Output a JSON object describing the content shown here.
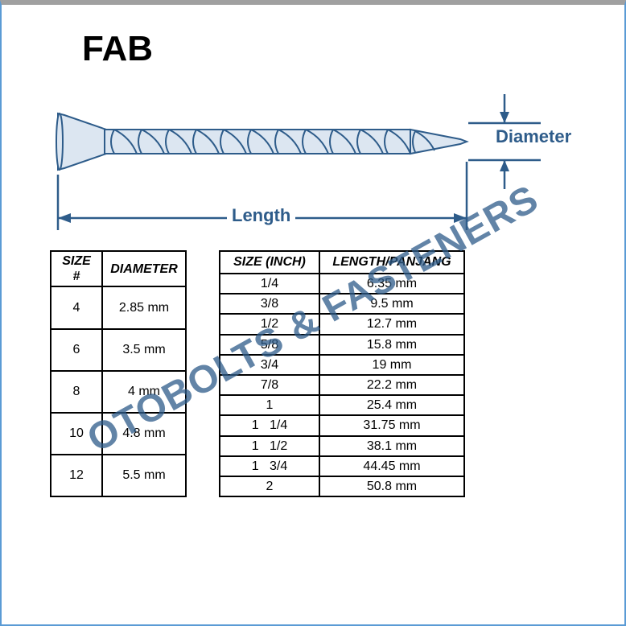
{
  "title": "FAB",
  "diagram": {
    "length_label": "Length",
    "diameter_label": "Diameter",
    "stroke_color": "#2e5c8a",
    "fill_color": "#dce6f1",
    "line_width": 2
  },
  "size_table": {
    "columns": [
      "SIZE #",
      "DIAMETER"
    ],
    "rows": [
      [
        "4",
        "2.85 mm"
      ],
      [
        "6",
        "3.5 mm"
      ],
      [
        "8",
        "4 mm"
      ],
      [
        "10",
        "4.8 mm"
      ],
      [
        "12",
        "5.5 mm"
      ]
    ]
  },
  "length_table": {
    "columns": [
      "SIZE (INCH)",
      "LENGTH/PANJANG"
    ],
    "rows": [
      [
        "1/4",
        "6.35 mm"
      ],
      [
        "3/8",
        "9.5 mm"
      ],
      [
        "1/2",
        "12.7 mm"
      ],
      [
        "5/8",
        "15.8 mm"
      ],
      [
        "3/4",
        "19 mm"
      ],
      [
        "7/8",
        "22.2 mm"
      ],
      [
        "1",
        "25.4 mm"
      ],
      [
        "1   1/4",
        "31.75 mm"
      ],
      [
        "1   1/2",
        "38.1 mm"
      ],
      [
        "1   3/4",
        "44.45 mm"
      ],
      [
        "2",
        "50.8 mm"
      ]
    ]
  },
  "watermark": "OTOBOLTS & FASTENERS",
  "colors": {
    "label_color": "#2e5c8a",
    "watermark_color": "#2e5c8a",
    "border_color": "#5a9bd5"
  }
}
